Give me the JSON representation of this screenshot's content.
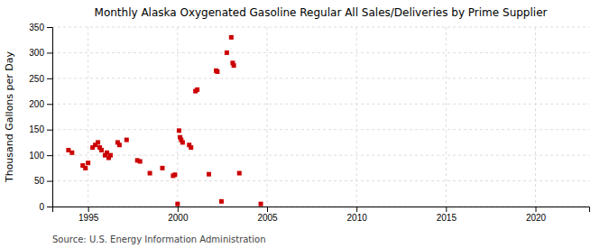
{
  "chart_data": {
    "type": "scatter",
    "title": "Monthly Alaska Oxygenated Gasoline Regular All Sales/Deliveries by Prime Supplier",
    "ylabel": "Thousand Gallons per Day",
    "source": "Source: U.S. Energy Information Administration",
    "color": "#cc0000",
    "marker": "square",
    "grid": true,
    "xlim": [
      1993.0,
      2023.0
    ],
    "ylim": [
      0,
      350
    ],
    "xticks": [
      1995,
      2000,
      2005,
      2010,
      2015,
      2020
    ],
    "yticks": [
      0,
      50,
      100,
      150,
      200,
      250,
      300,
      350
    ],
    "x": [
      1993.9,
      1994.1,
      1994.7,
      1994.85,
      1995.0,
      1995.25,
      1995.4,
      1995.55,
      1995.65,
      1995.75,
      1995.95,
      1996.05,
      1996.15,
      1996.25,
      1996.65,
      1996.75,
      1997.15,
      1997.75,
      1997.9,
      1998.45,
      1999.15,
      1999.75,
      1999.85,
      2000.0,
      2000.08,
      2000.14,
      2000.2,
      2000.28,
      2000.65,
      2000.75,
      2001.0,
      2001.1,
      2001.75,
      2002.15,
      2002.22,
      2002.75,
      2003.0,
      2003.08,
      2003.14,
      2003.45,
      2002.45,
      2004.65
    ],
    "values": [
      110,
      105,
      80,
      75,
      85,
      115,
      120,
      125,
      115,
      110,
      100,
      105,
      95,
      100,
      125,
      120,
      130,
      90,
      88,
      65,
      75,
      60,
      62,
      5,
      148,
      135,
      130,
      125,
      120,
      115,
      225,
      228,
      63,
      265,
      263,
      300,
      330,
      280,
      275,
      65,
      10,
      5
    ]
  }
}
